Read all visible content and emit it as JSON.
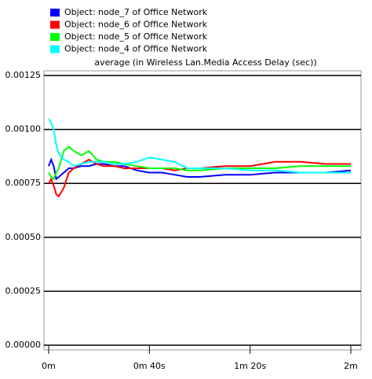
{
  "chart_data": {
    "type": "line",
    "subtitle": "average (in Wireless Lan.Media Access Delay (sec))",
    "x": [
      0,
      1,
      2,
      3,
      4,
      6,
      8,
      10,
      13,
      16,
      19,
      22,
      26,
      30,
      35,
      40,
      45,
      50,
      55,
      60,
      70,
      80,
      90,
      100,
      110,
      120
    ],
    "series": [
      {
        "name": "Object: node_7 of Office Network",
        "color": "#0000ff",
        "values": [
          0.00083,
          0.00086,
          0.00083,
          0.00077,
          0.00078,
          0.0008,
          0.00082,
          0.00082,
          0.00083,
          0.00083,
          0.00084,
          0.00084,
          0.00083,
          0.00083,
          0.00081,
          0.0008,
          0.0008,
          0.00079,
          0.00078,
          0.00078,
          0.00079,
          0.00079,
          0.0008,
          0.0008,
          0.0008,
          0.00081
        ]
      },
      {
        "name": "Object: node_6 of Office Network",
        "color": "#ff0000",
        "values": [
          0.00075,
          0.00077,
          0.00074,
          0.0007,
          0.00069,
          0.00073,
          0.0008,
          0.00082,
          0.00084,
          0.00086,
          0.00084,
          0.00083,
          0.00083,
          0.00082,
          0.00082,
          0.00082,
          0.00082,
          0.00081,
          0.00082,
          0.00082,
          0.00083,
          0.00083,
          0.00085,
          0.00085,
          0.00084,
          0.00084
        ]
      },
      {
        "name": "Object: node_5 of Office Network",
        "color": "#00ff00",
        "values": [
          0.0008,
          0.00078,
          0.00077,
          0.0008,
          0.00082,
          0.0009,
          0.00092,
          0.0009,
          0.00088,
          0.0009,
          0.00086,
          0.00085,
          0.00085,
          0.00084,
          0.00083,
          0.00082,
          0.00082,
          0.00082,
          0.00081,
          0.00081,
          0.00082,
          0.00082,
          0.00082,
          0.00083,
          0.00083,
          0.00083
        ]
      },
      {
        "name": "Object: node_4 of Office Network",
        "color": "#00ffff",
        "values": [
          0.00105,
          0.00103,
          0.001,
          0.00093,
          0.00089,
          0.00086,
          0.00085,
          0.00083,
          0.00084,
          0.00085,
          0.00085,
          0.00085,
          0.00084,
          0.00084,
          0.00085,
          0.00087,
          0.00086,
          0.00085,
          0.00082,
          0.00082,
          0.00082,
          0.00081,
          0.00081,
          0.0008,
          0.0008,
          0.0008
        ]
      }
    ],
    "xlim": [
      0,
      120
    ],
    "xticks": [
      {
        "value": 0,
        "label": "0m"
      },
      {
        "value": 40,
        "label": "0m 40s"
      },
      {
        "value": 80,
        "label": "1m 20s"
      },
      {
        "value": 120,
        "label": "2m"
      }
    ],
    "ylim": [
      0,
      0.00125
    ],
    "yticks": [
      {
        "value": 0,
        "label": "0.00000"
      },
      0.00025,
      {
        "value": 0.0005,
        "label": "0.00050"
      },
      0.00075,
      {
        "value": 0.001,
        "label": "0.00100"
      },
      0.00125
    ],
    "grid": true,
    "legend": "top-left"
  }
}
